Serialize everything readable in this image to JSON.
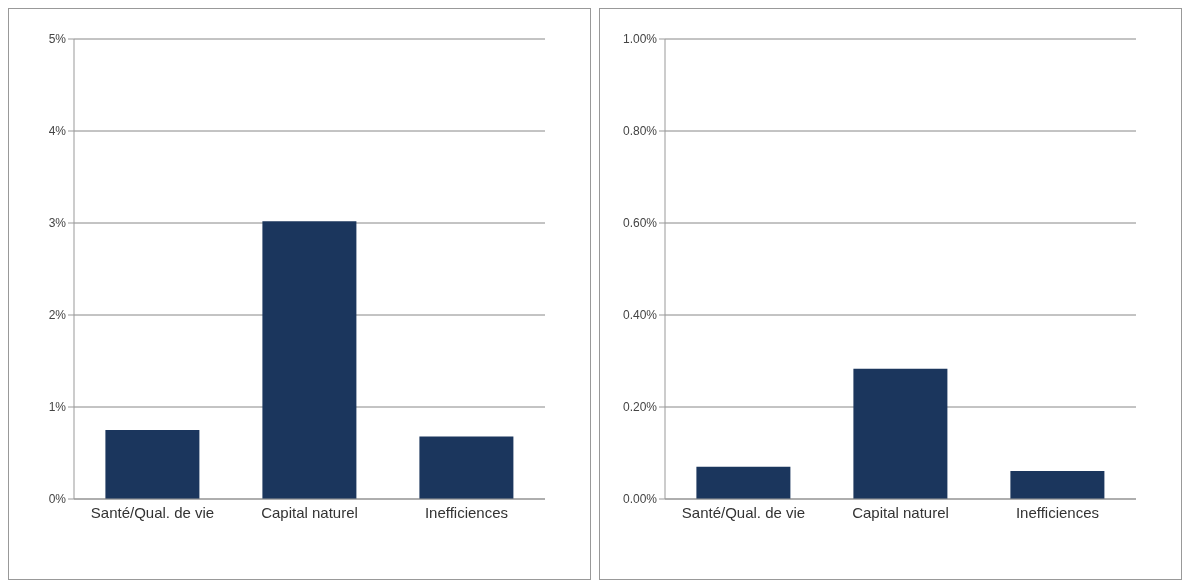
{
  "chart_data": [
    {
      "type": "bar",
      "categories": [
        "Santé/Qual. de vie",
        "Capital naturel",
        "Inefficiences"
      ],
      "values": [
        0.75,
        3.02,
        0.68
      ],
      "color": "#1b365d",
      "ylim": [
        0,
        5
      ],
      "yticks": [
        {
          "value": 0,
          "label": "0%"
        },
        {
          "value": 1,
          "label": "1%"
        },
        {
          "value": 2,
          "label": "2%"
        },
        {
          "value": 3,
          "label": "3%"
        },
        {
          "value": 4,
          "label": "4%"
        },
        {
          "value": 5,
          "label": "5%"
        }
      ],
      "grid": "y"
    },
    {
      "type": "bar",
      "categories": [
        "Santé/Qual. de vie",
        "Capital naturel",
        "Inefficiences"
      ],
      "values": [
        0.07,
        0.283,
        0.061
      ],
      "color": "#1b365d",
      "ylim": [
        0,
        1
      ],
      "yticks": [
        {
          "value": 0,
          "label": "0.00%"
        },
        {
          "value": 0.2,
          "label": "0.20%"
        },
        {
          "value": 0.4,
          "label": "0.40%"
        },
        {
          "value": 0.6,
          "label": "0.60%"
        },
        {
          "value": 0.8,
          "label": "0.80%"
        },
        {
          "value": 1,
          "label": "1.00%"
        }
      ],
      "grid": "y"
    }
  ]
}
